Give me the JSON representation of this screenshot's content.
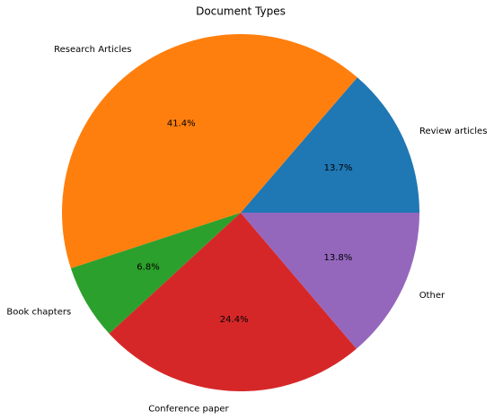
{
  "chart_data": {
    "type": "pie",
    "title": "Document Types",
    "categories": [
      "Review articles",
      "Research Articles",
      "Book chapters",
      "Conference paper",
      "Other"
    ],
    "values": [
      13.7,
      41.4,
      6.8,
      24.4,
      13.8
    ],
    "value_labels": [
      "13.7%",
      "41.4%",
      "6.8%",
      "24.4%",
      "13.8%"
    ],
    "colors": [
      "#1f77b4",
      "#ff7f0e",
      "#2ca02c",
      "#d62728",
      "#9467bd"
    ]
  }
}
